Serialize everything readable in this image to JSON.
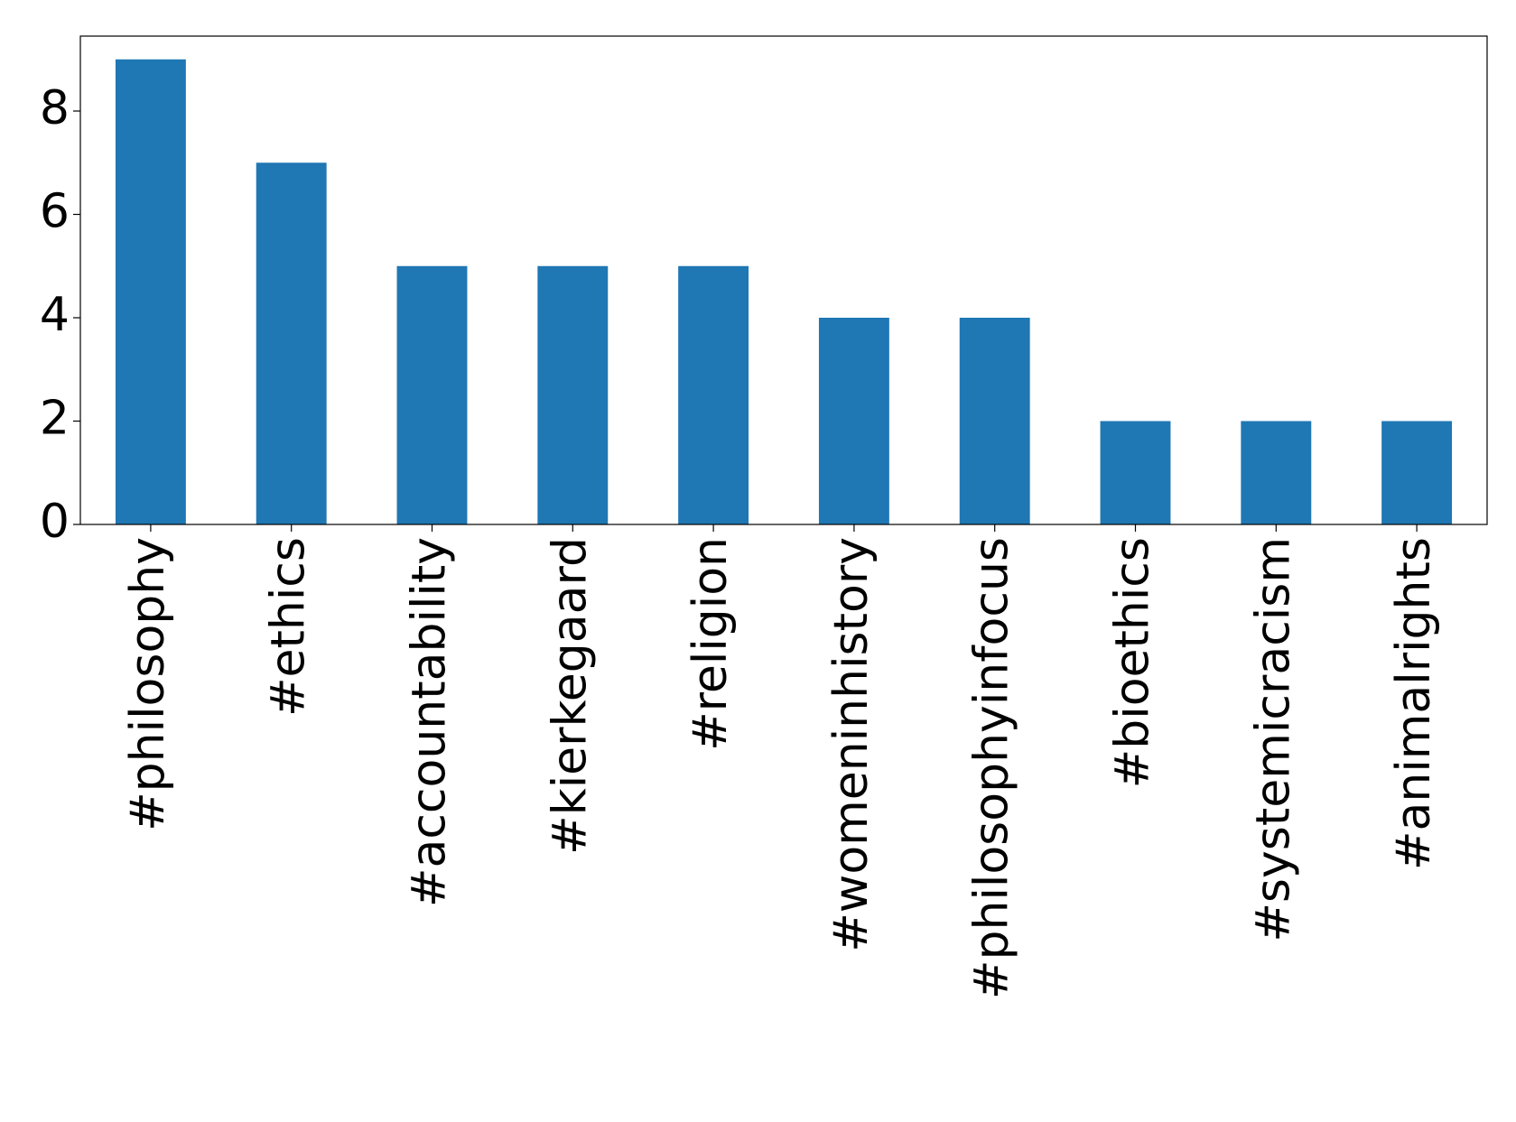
{
  "chart_data": {
    "type": "bar",
    "categories": [
      "#philosophy",
      "#ethics",
      "#accountability",
      "#kierkegaard",
      "#religion",
      "#womeninhistory",
      "#philosophyinfocus",
      "#bioethics",
      "#systemicracism",
      "#animalrights"
    ],
    "values": [
      9,
      7,
      5,
      5,
      5,
      4,
      4,
      2,
      2,
      2
    ],
    "color": "#1f77b4",
    "ylim": [
      0,
      9.45
    ],
    "yticks": [
      0,
      2,
      4,
      6,
      8
    ],
    "grid": false
  }
}
